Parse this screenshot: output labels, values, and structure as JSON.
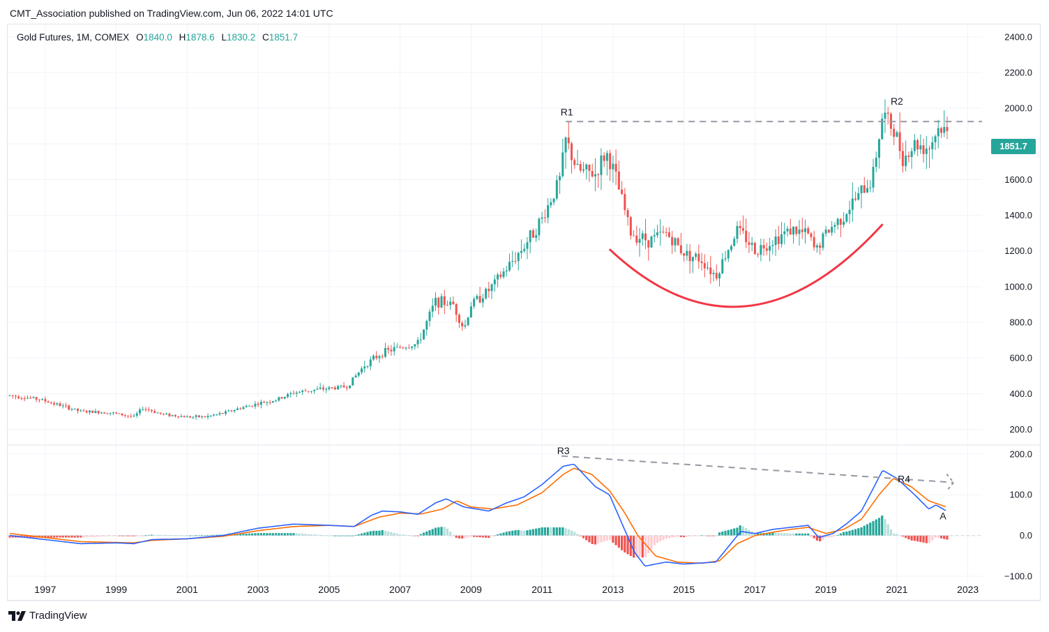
{
  "header": {
    "published": "CMT_Association published on TradingView.com, Jun 06, 2022 14:01 UTC"
  },
  "legend": {
    "symbol": "Gold Futures, 1M, COMEX",
    "o_label": "O",
    "o_value": "1840.0",
    "h_label": "H",
    "h_value": "1878.6",
    "l_label": "L",
    "l_value": "1830.2",
    "c_label": "C",
    "c_value": "1851.7"
  },
  "price_tag": "1851.7",
  "brand": "TradingView",
  "colors": {
    "up": "#26a69a",
    "down": "#ef5350",
    "macd": "#2962ff",
    "signal": "#ff6d00",
    "hist_up": "#26a69a",
    "hist_up_fading": "#b2dfdb",
    "hist_down": "#ef5350",
    "hist_down_fading": "#ffcdd2",
    "cup": "#f23645",
    "dashed": "#9598a1"
  },
  "chart_data": [
    {
      "type": "candlestick",
      "title": "Gold Futures, 1M, COMEX",
      "x_ticks": [
        "1997",
        "1999",
        "2001",
        "2003",
        "2005",
        "2007",
        "2009",
        "2011",
        "2013",
        "2015",
        "2017",
        "2019",
        "2021",
        "2023"
      ],
      "y_ticks": [
        "200.0",
        "400.0",
        "600.0",
        "800.0",
        "1000.0",
        "1200.0",
        "1400.0",
        "1600.0",
        "1800.0",
        "2000.0",
        "2200.0",
        "2400.0"
      ],
      "ylim": [
        120,
        2450
      ],
      "xlim": [
        1996.0,
        2023.4
      ],
      "close_path": [
        [
          1996.0,
          390
        ],
        [
          1996.8,
          370
        ],
        [
          1997.5,
          330
        ],
        [
          1998.0,
          300
        ],
        [
          1998.8,
          295
        ],
        [
          1999.5,
          270
        ],
        [
          1999.75,
          320
        ],
        [
          2000.3,
          285
        ],
        [
          2001.0,
          270
        ],
        [
          2001.5,
          270
        ],
        [
          2002.0,
          290
        ],
        [
          2002.5,
          320
        ],
        [
          2003.0,
          345
        ],
        [
          2003.5,
          365
        ],
        [
          2004.0,
          405
        ],
        [
          2004.5,
          420
        ],
        [
          2005.0,
          430
        ],
        [
          2005.5,
          440
        ],
        [
          2006.0,
          560
        ],
        [
          2006.5,
          630
        ],
        [
          2007.0,
          660
        ],
        [
          2007.5,
          680
        ],
        [
          2008.0,
          920
        ],
        [
          2008.5,
          900
        ],
        [
          2008.8,
          760
        ],
        [
          2009.0,
          900
        ],
        [
          2009.5,
          980
        ],
        [
          2010.0,
          1100
        ],
        [
          2010.5,
          1230
        ],
        [
          2011.0,
          1380
        ],
        [
          2011.5,
          1600
        ],
        [
          2011.67,
          1820
        ],
        [
          2012.0,
          1650
        ],
        [
          2012.5,
          1630
        ],
        [
          2012.8,
          1750
        ],
        [
          2013.0,
          1660
        ],
        [
          2013.3,
          1450
        ],
        [
          2013.5,
          1300
        ],
        [
          2014.0,
          1260
        ],
        [
          2014.5,
          1300
        ],
        [
          2015.0,
          1190
        ],
        [
          2015.5,
          1150
        ],
        [
          2015.9,
          1060
        ],
        [
          2016.5,
          1320
        ],
        [
          2016.8,
          1260
        ],
        [
          2017.0,
          1200
        ],
        [
          2017.5,
          1260
        ],
        [
          2018.0,
          1320
        ],
        [
          2018.5,
          1290
        ],
        [
          2018.7,
          1200
        ],
        [
          2019.0,
          1300
        ],
        [
          2019.5,
          1400
        ],
        [
          2019.8,
          1480
        ],
        [
          2020.3,
          1600
        ],
        [
          2020.6,
          1970
        ],
        [
          2020.9,
          1880
        ],
        [
          2021.2,
          1720
        ],
        [
          2021.5,
          1800
        ],
        [
          2021.9,
          1780
        ],
        [
          2022.2,
          1900
        ],
        [
          2022.4,
          1851.7
        ]
      ],
      "annotations": [
        {
          "text": "R1",
          "x": 2011.7,
          "y": 1960
        },
        {
          "text": "R2",
          "x": 2021.0,
          "y": 2020
        }
      ],
      "resistance_level": 1925,
      "cup_curve": [
        [
          2012.9,
          1210
        ],
        [
          2016.7,
          930
        ],
        [
          2020.6,
          1350
        ]
      ]
    },
    {
      "type": "line",
      "indicator": "MACD",
      "y_ticks": [
        "200.0",
        "100.0",
        "0.0",
        "−100.0"
      ],
      "ylim": [
        -110,
        215
      ],
      "series": [
        {
          "values": [
            [
              1996.0,
              0
            ],
            [
              1997.0,
              -10
            ],
            [
              1998.0,
              -20
            ],
            [
              1999.0,
              -18
            ],
            [
              1999.5,
              -20
            ],
            [
              2000.0,
              -10
            ],
            [
              2001.0,
              -8
            ],
            [
              2002.0,
              0
            ],
            [
              2003.0,
              18
            ],
            [
              2004.0,
              28
            ],
            [
              2005.0,
              25
            ],
            [
              2005.7,
              22
            ],
            [
              2006.2,
              50
            ],
            [
              2006.5,
              60
            ],
            [
              2007.0,
              58
            ],
            [
              2007.5,
              52
            ],
            [
              2008.0,
              80
            ],
            [
              2008.3,
              90
            ],
            [
              2008.8,
              70
            ],
            [
              2009.5,
              60
            ],
            [
              2010.0,
              80
            ],
            [
              2010.5,
              95
            ],
            [
              2011.0,
              125
            ],
            [
              2011.6,
              170
            ],
            [
              2011.9,
              175
            ],
            [
              2012.5,
              120
            ],
            [
              2012.9,
              100
            ],
            [
              2013.3,
              20
            ],
            [
              2013.6,
              -40
            ],
            [
              2013.9,
              -75
            ],
            [
              2014.5,
              -65
            ],
            [
              2015.0,
              -70
            ],
            [
              2015.9,
              -65
            ],
            [
              2016.6,
              10
            ],
            [
              2017.0,
              5
            ],
            [
              2017.5,
              15
            ],
            [
              2018.0,
              20
            ],
            [
              2018.5,
              25
            ],
            [
              2018.8,
              -5
            ],
            [
              2019.2,
              5
            ],
            [
              2019.6,
              30
            ],
            [
              2020.0,
              60
            ],
            [
              2020.6,
              160
            ],
            [
              2021.0,
              140
            ],
            [
              2021.5,
              100
            ],
            [
              2021.9,
              65
            ],
            [
              2022.1,
              75
            ],
            [
              2022.4,
              60
            ]
          ]
        },
        {
          "values": [
            [
              1996.0,
              5
            ],
            [
              1997.0,
              -5
            ],
            [
              1998.0,
              -15
            ],
            [
              1999.5,
              -18
            ],
            [
              2000.0,
              -12
            ],
            [
              2001.0,
              -8
            ],
            [
              2002.0,
              -2
            ],
            [
              2003.0,
              12
            ],
            [
              2004.0,
              22
            ],
            [
              2005.0,
              25
            ],
            [
              2005.7,
              22
            ],
            [
              2006.4,
              45
            ],
            [
              2007.0,
              55
            ],
            [
              2007.6,
              53
            ],
            [
              2008.2,
              65
            ],
            [
              2008.6,
              85
            ],
            [
              2009.0,
              70
            ],
            [
              2009.6,
              65
            ],
            [
              2010.3,
              75
            ],
            [
              2011.0,
              105
            ],
            [
              2011.6,
              150
            ],
            [
              2011.9,
              165
            ],
            [
              2012.4,
              150
            ],
            [
              2012.9,
              110
            ],
            [
              2013.3,
              60
            ],
            [
              2013.7,
              0
            ],
            [
              2014.2,
              -50
            ],
            [
              2014.8,
              -65
            ],
            [
              2015.5,
              -68
            ],
            [
              2016.0,
              -62
            ],
            [
              2016.5,
              -20
            ],
            [
              2017.0,
              0
            ],
            [
              2017.5,
              8
            ],
            [
              2018.0,
              15
            ],
            [
              2018.5,
              20
            ],
            [
              2019.0,
              5
            ],
            [
              2019.5,
              15
            ],
            [
              2020.0,
              40
            ],
            [
              2020.5,
              100
            ],
            [
              2020.9,
              140
            ],
            [
              2021.4,
              120
            ],
            [
              2021.9,
              85
            ],
            [
              2022.4,
              70
            ]
          ]
        }
      ],
      "annotations": [
        {
          "text": "R3",
          "x": 2011.6,
          "y": 200
        },
        {
          "text": "R4",
          "x": 2021.2,
          "y": 130
        },
        {
          "text": "A",
          "x": 2022.3,
          "y": 40
        }
      ]
    }
  ]
}
